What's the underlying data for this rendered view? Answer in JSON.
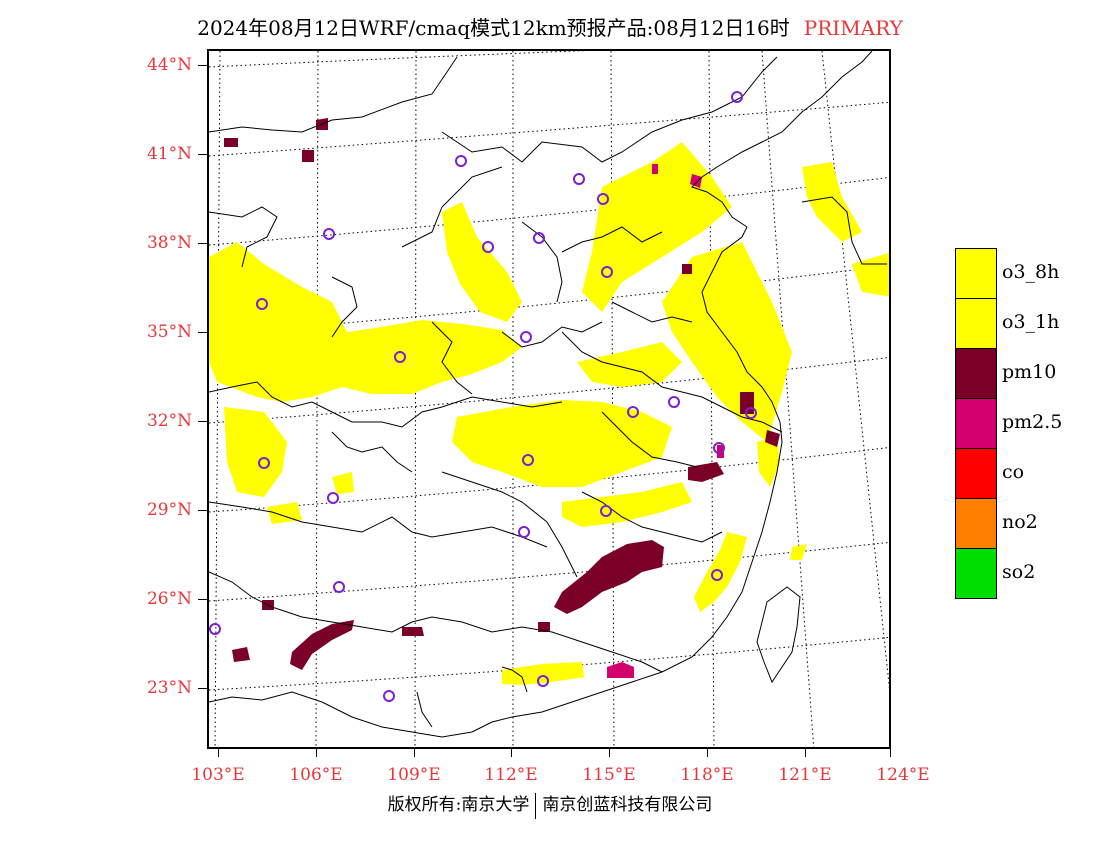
{
  "title": {
    "text": "2024年08月12日WRF/cmaq模式12km预报产品:08月12日16时",
    "tag": "PRIMARY",
    "tag_color": "#e8373a"
  },
  "map": {
    "lat_labels": [
      "44°N",
      "41°N",
      "38°N",
      "35°N",
      "32°N",
      "29°N",
      "26°N",
      "23°N"
    ],
    "lon_labels": [
      "103°E",
      "106°E",
      "109°E",
      "112°E",
      "115°E",
      "118°E",
      "121°E",
      "124°E"
    ],
    "label_color": "#e8373a",
    "station_marker": "circle",
    "station_color": "#7a1fd6"
  },
  "legend": {
    "items": [
      {
        "label": "o3_8h",
        "color": "#ffff00"
      },
      {
        "label": "o3_1h",
        "color": "#ffff00"
      },
      {
        "label": "pm10",
        "color": "#7a0028"
      },
      {
        "label": "pm2.5",
        "color": "#d4006e"
      },
      {
        "label": "co",
        "color": "#ff0000"
      },
      {
        "label": "no2",
        "color": "#ff8000"
      },
      {
        "label": "so2",
        "color": "#00dd00"
      }
    ]
  },
  "footer": {
    "left": "版权所有:南京大学",
    "right": "南京创蓝科技有限公司"
  }
}
